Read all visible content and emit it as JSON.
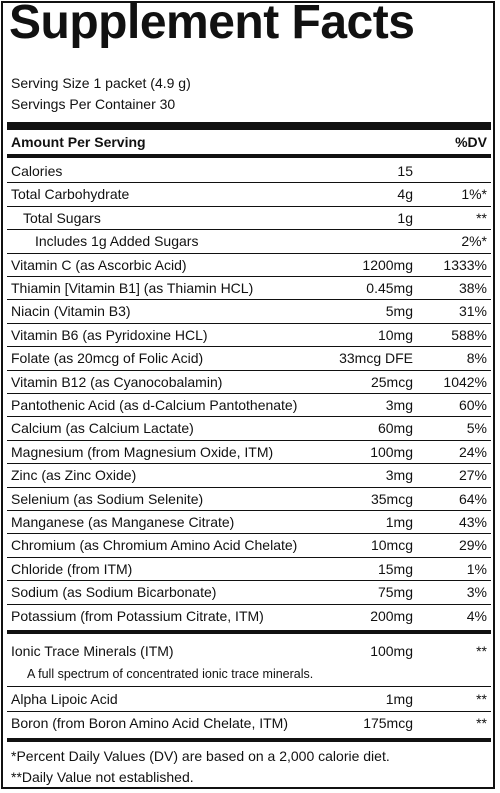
{
  "title": "Supplement Facts",
  "serving_size": "Serving Size 1 packet (4.9 g)",
  "servings_per_container": "Servings Per Container 30",
  "header": {
    "amount_label": "Amount Per Serving",
    "dv_label": "%DV"
  },
  "rows": [
    {
      "name": "Calories",
      "amount": "15",
      "dv": ""
    },
    {
      "name": "Total Carbohydrate",
      "amount": "4g",
      "dv": "1%*"
    },
    {
      "name": "Total Sugars",
      "amount": "1g",
      "dv": "**"
    },
    {
      "name": "Includes 1g Added Sugars",
      "amount": "",
      "dv": "2%*"
    },
    {
      "name": "Vitamin C (as Ascorbic Acid)",
      "amount": "1200mg",
      "dv": "1333%"
    },
    {
      "name": "Thiamin [Vitamin B1] (as Thiamin HCL)",
      "amount": "0.45mg",
      "dv": "38%"
    },
    {
      "name": "Niacin (Vitamin B3)",
      "amount": "5mg",
      "dv": "31%"
    },
    {
      "name": "Vitamin B6 (as Pyridoxine HCL)",
      "amount": "10mg",
      "dv": "588%"
    },
    {
      "name": "Folate (as 20mcg of Folic Acid)",
      "amount": "33mcg DFE",
      "dv": "8%"
    },
    {
      "name": "Vitamin B12 (as Cyanocobalamin)",
      "amount": "25mcg",
      "dv": "1042%"
    },
    {
      "name": "Pantothenic Acid (as d-Calcium Pantothenate)",
      "amount": "3mg",
      "dv": "60%"
    },
    {
      "name": "Calcium (as Calcium Lactate)",
      "amount": "60mg",
      "dv": "5%"
    },
    {
      "name": "Magnesium (from Magnesium Oxide, ITM)",
      "amount": "100mg",
      "dv": "24%"
    },
    {
      "name": "Zinc (as Zinc Oxide)",
      "amount": "3mg",
      "dv": "27%"
    },
    {
      "name": "Selenium (as Sodium Selenite)",
      "amount": "35mcg",
      "dv": "64%"
    },
    {
      "name": "Manganese (as Manganese Citrate)",
      "amount": "1mg",
      "dv": "43%"
    },
    {
      "name": "Chromium (as Chromium Amino Acid Chelate)",
      "amount": "10mcg",
      "dv": "29%"
    },
    {
      "name": "Chloride (from ITM)",
      "amount": "15mg",
      "dv": "1%"
    },
    {
      "name": "Sodium (as Sodium Bicarbonate)",
      "amount": "75mg",
      "dv": "3%"
    },
    {
      "name": "Potassium (from Potassium Citrate, ITM)",
      "amount": "200mg",
      "dv": "4%"
    }
  ],
  "ionic": {
    "name": "Ionic Trace Minerals (ITM)",
    "amount": "100mg",
    "dv": "**",
    "note": "A full spectrum of concentrated ionic trace minerals."
  },
  "extra_rows": [
    {
      "name": "Alpha Lipoic Acid",
      "amount": "1mg",
      "dv": "**"
    },
    {
      "name": "Boron (from Boron Amino Acid Chelate, ITM)",
      "amount": "175mcg",
      "dv": "**"
    }
  ],
  "footnotes": [
    "*Percent Daily Values (DV) are based on a 2,000 calorie diet.",
    "**Daily Value not established."
  ]
}
